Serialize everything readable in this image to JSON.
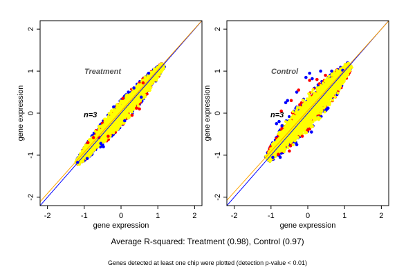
{
  "caption": "Average R-squared: Treatment (0.98), Control (0.97)",
  "footnote": "Genes detected at least one chip were plotted (detection p-value < 0.01)",
  "colors": {
    "low": "#0000ff",
    "mid": "#ff0000",
    "high": "#ffff00",
    "diagonal": "#0000ff",
    "fit_line": "#ffa500"
  },
  "chart_data": [
    {
      "type": "scatter",
      "title": "Treatment",
      "annotation": "n=3",
      "xlabel": "gene expression",
      "ylabel": "gene expression",
      "xlim": [
        -2.2,
        2.2
      ],
      "ylim": [
        -2.2,
        2.2
      ],
      "xticks": [
        -2,
        -1,
        0,
        1,
        2
      ],
      "yticks": [
        -2,
        -1,
        0,
        1,
        2
      ],
      "xtick_labels": [
        "-2",
        "-1",
        "0",
        "1",
        "2"
      ],
      "ytick_labels": [
        "-2",
        "-1",
        "0",
        "1",
        "2"
      ],
      "grid": false,
      "reference_lines": [
        {
          "slope": 1.0,
          "intercept": 0.0,
          "color": "#0000ff"
        },
        {
          "slope": 0.98,
          "intercept": 0.05,
          "color": "#ffa500"
        }
      ],
      "point_cloud": {
        "x_range": [
          -1.2,
          1.15
        ],
        "spread": 0.12,
        "max_spread": 0.32
      },
      "series": [
        {
          "color": "#0000ff",
          "points": [
            [
              -1.18,
              -1.17
            ],
            [
              -0.92,
              -1.08
            ],
            [
              -0.55,
              -0.72
            ],
            [
              -0.48,
              -0.8
            ],
            [
              0.2,
              0.5
            ],
            [
              0.35,
              0.6
            ],
            [
              0.55,
              0.38
            ],
            [
              0.75,
              0.95
            ],
            [
              -0.2,
              0.15
            ],
            [
              0.1,
              -0.18
            ]
          ]
        },
        {
          "color": "#ff0000",
          "points": [
            [
              -0.75,
              -0.58
            ],
            [
              -0.6,
              -0.58
            ],
            [
              -0.35,
              -0.55
            ],
            [
              0.05,
              0.35
            ],
            [
              0.42,
              0.12
            ],
            [
              0.5,
              0.1
            ],
            [
              0.6,
              0.72
            ],
            [
              -0.9,
              -0.7
            ],
            [
              0.3,
              -0.05
            ]
          ]
        }
      ]
    },
    {
      "type": "scatter",
      "title": "Control",
      "annotation": "n=3",
      "xlabel": "gene expression",
      "ylabel": "gene expression",
      "xlim": [
        -2.2,
        2.2
      ],
      "ylim": [
        -2.2,
        2.2
      ],
      "xticks": [
        -2,
        -1,
        0,
        1,
        2
      ],
      "yticks": [
        -2,
        -1,
        0,
        1,
        2
      ],
      "xtick_labels": [
        "-2",
        "-1",
        "0",
        "1",
        "2"
      ],
      "ytick_labels": [
        "-2",
        "-1",
        "0",
        "1",
        "2"
      ],
      "grid": false,
      "reference_lines": [
        {
          "slope": 1.0,
          "intercept": 0.0,
          "color": "#0000ff"
        },
        {
          "slope": 0.97,
          "intercept": 0.06,
          "color": "#ffa500"
        }
      ],
      "point_cloud": {
        "x_range": [
          -1.1,
          1.15
        ],
        "spread": 0.16,
        "max_spread": 0.45
      },
      "series": [
        {
          "color": "#0000ff",
          "points": [
            [
              -0.85,
              -0.25
            ],
            [
              -0.78,
              -0.2
            ],
            [
              -0.7,
              -0.3
            ],
            [
              -0.6,
              0.25
            ],
            [
              -0.55,
              0.3
            ],
            [
              -0.3,
              0.5
            ],
            [
              -0.05,
              0.85
            ],
            [
              0.05,
              0.95
            ],
            [
              0.12,
              0.82
            ],
            [
              0.35,
              1.0
            ],
            [
              0.65,
              1.0
            ],
            [
              0.95,
              1.02
            ],
            [
              -0.95,
              -1.05
            ],
            [
              -0.75,
              -1.05
            ],
            [
              -0.3,
              -0.75
            ],
            [
              0.1,
              -0.45
            ],
            [
              0.55,
              0.12
            ]
          ]
        },
        {
          "color": "#ff0000",
          "points": [
            [
              -0.72,
              0.05
            ],
            [
              -0.45,
              0.3
            ],
            [
              -0.25,
              0.55
            ],
            [
              0.05,
              0.78
            ],
            [
              0.25,
              0.8
            ],
            [
              0.48,
              0.9
            ],
            [
              -0.8,
              -0.98
            ],
            [
              -0.5,
              -0.9
            ],
            [
              0.0,
              -0.4
            ],
            [
              -0.15,
              -0.55
            ]
          ]
        }
      ]
    }
  ]
}
